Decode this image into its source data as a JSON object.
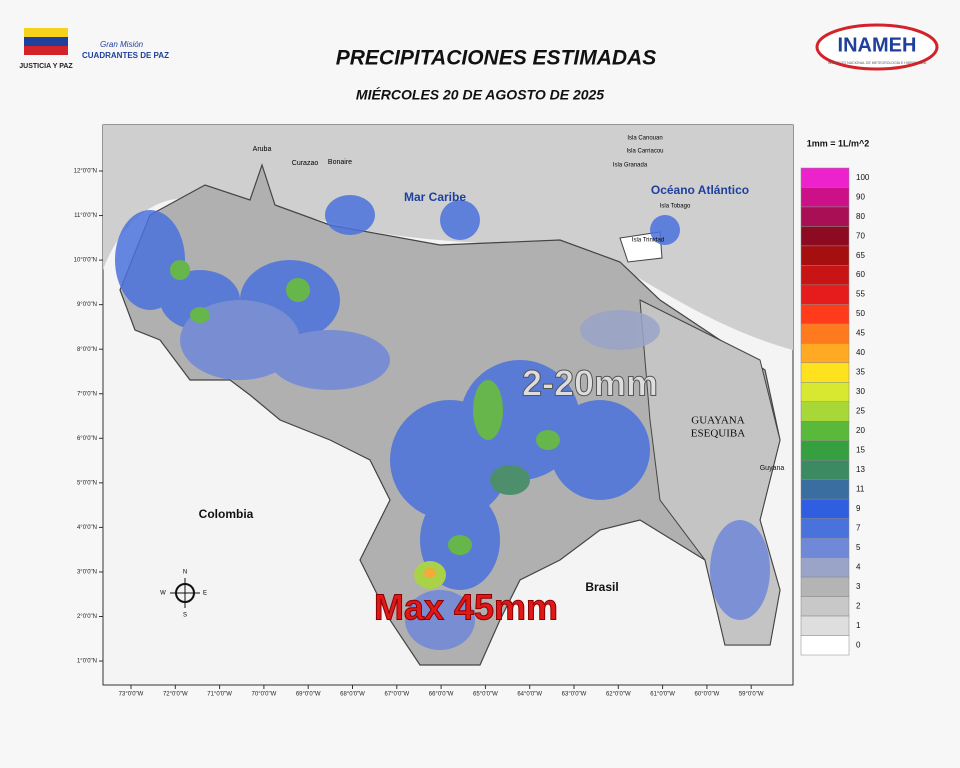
{
  "header": {
    "title": "PRECIPITACIONES ESTIMADAS",
    "date": "MIÉRCOLES 20 DE AGOSTO DE 2025",
    "left_logo": {
      "caption": "JUSTICIA Y PAZ",
      "mission_top": "Gran Misión",
      "mission_name": "CUADRANTES DE PAZ"
    },
    "right_logo": {
      "name": "INAMEH",
      "caption": "INSTITUTO NACIONAL DE METEOROLOGÍA E HIDROLOGÍA"
    }
  },
  "map": {
    "labels": {
      "sea": "Mar Caribe",
      "ocean": "Océano Atlántico",
      "colombia": "Colombia",
      "brasil": "Brasil",
      "guayana": "GUAYANA",
      "esequiba": "ESEQUIBA",
      "guyana": "Guyana",
      "aruba": "Aruba",
      "curazao": "Curazao",
      "bonaire": "Bonaire",
      "canouan": "Isla Canouan",
      "carriacou": "Isla Carriacou",
      "granada": "Isla Granada",
      "tobago": "Isla Tobago",
      "trinidad": "Isla Trinidad"
    },
    "annotations": {
      "range": "2-20mm",
      "max": "Max 45mm"
    },
    "compass": {
      "n": "N",
      "s": "S",
      "e": "E",
      "w": "W"
    },
    "lat_ticks": [
      "12°0'0\"N",
      "11°0'0\"N",
      "10°0'0\"N",
      "9°0'0\"N",
      "8°0'0\"N",
      "7°0'0\"N",
      "6°0'0\"N",
      "5°0'0\"N",
      "4°0'0\"N",
      "3°0'0\"N",
      "2°0'0\"N",
      "1°0'0\"N"
    ],
    "lon_ticks": [
      "73°0'0\"W",
      "72°0'0\"W",
      "71°0'0\"W",
      "70°0'0\"W",
      "69°0'0\"W",
      "68°0'0\"W",
      "67°0'0\"W",
      "66°0'0\"W",
      "65°0'0\"W",
      "64°0'0\"W",
      "63°0'0\"W",
      "62°0'0\"W",
      "61°0'0\"W",
      "60°0'0\"W",
      "59°0'0\"W"
    ]
  },
  "legend": {
    "title": "1mm = 1L/m^2",
    "bins": [
      {
        "value": "100",
        "color": "#ee22cc"
      },
      {
        "value": "90",
        "color": "#cc1188"
      },
      {
        "value": "80",
        "color": "#a80f55"
      },
      {
        "value": "70",
        "color": "#8c0a22"
      },
      {
        "value": "65",
        "color": "#a50f0f"
      },
      {
        "value": "60",
        "color": "#c81414"
      },
      {
        "value": "55",
        "color": "#e61c1c"
      },
      {
        "value": "50",
        "color": "#ff3b1c"
      },
      {
        "value": "45",
        "color": "#ff7a1e"
      },
      {
        "value": "40",
        "color": "#ffaa22"
      },
      {
        "value": "35",
        "color": "#ffe21e"
      },
      {
        "value": "30",
        "color": "#d8e830"
      },
      {
        "value": "25",
        "color": "#a8d838"
      },
      {
        "value": "20",
        "color": "#5ab83a"
      },
      {
        "value": "15",
        "color": "#36a040"
      },
      {
        "value": "13",
        "color": "#3c8a62"
      },
      {
        "value": "11",
        "color": "#3a6ea0"
      },
      {
        "value": "9",
        "color": "#2f5fe0"
      },
      {
        "value": "7",
        "color": "#4a72dc"
      },
      {
        "value": "5",
        "color": "#7088d8"
      },
      {
        "value": "4",
        "color": "#9aa4c8"
      },
      {
        "value": "3",
        "color": "#b4b4b4"
      },
      {
        "value": "2",
        "color": "#c8c8c8"
      },
      {
        "value": "1",
        "color": "#dedede"
      },
      {
        "value": "0",
        "color": "#ffffff"
      }
    ]
  }
}
